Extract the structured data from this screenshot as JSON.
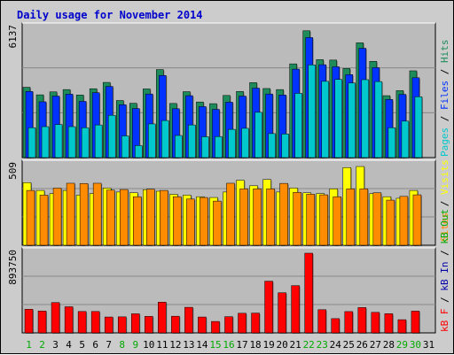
{
  "title": "Daily usage for November 2014",
  "colors": {
    "background": "#cccccc",
    "plot_background": "#bbbbbb",
    "title": "#0000cc",
    "hits": "#00c8cc",
    "files": "#0033ff",
    "pages": "#1e8c5a",
    "visits": "#ffff00",
    "sites": "#ff8c00",
    "kbin": "#0000aa",
    "kbout": "#00aa00",
    "kbf": "#ff0000",
    "weekend_day_label": "#00aa00",
    "weekday_day_label": "#000000"
  },
  "chart_data": [
    {
      "type": "bar",
      "id": "hits-files-pages",
      "categories": [
        "1",
        "2",
        "3",
        "4",
        "5",
        "6",
        "7",
        "8",
        "9",
        "10",
        "11",
        "12",
        "13",
        "14",
        "15",
        "16",
        "17",
        "18",
        "19",
        "20",
        "21",
        "22",
        "23",
        "24",
        "25",
        "26",
        "27",
        "28",
        "29",
        "30",
        "31"
      ],
      "weekend_days": [
        "1",
        "2",
        "8",
        "9",
        "15",
        "16",
        "22",
        "23",
        "29",
        "30"
      ],
      "y_max_label": "6137",
      "y_max": 6137,
      "series": [
        {
          "name": "Pages",
          "color_key": "pages",
          "values": [
            3340,
            2980,
            3120,
            3230,
            2970,
            3270,
            3570,
            2710,
            2580,
            3260,
            4180,
            2570,
            3130,
            2640,
            2560,
            2950,
            3140,
            3560,
            3280,
            3230,
            4450,
            6020,
            4650,
            4630,
            4230,
            5450,
            4570,
            2940,
            3180,
            4120,
            0
          ]
        },
        {
          "name": "Files",
          "color_key": "files",
          "values": [
            3140,
            2650,
            2920,
            3010,
            2670,
            3080,
            3380,
            2510,
            2330,
            3020,
            3900,
            2320,
            2940,
            2420,
            2290,
            2630,
            2920,
            3300,
            3020,
            2970,
            4200,
            5700,
            4410,
            4310,
            3940,
            5190,
            4270,
            2760,
            3000,
            3790,
            0
          ]
        },
        {
          "name": "Hits",
          "color_key": "hits",
          "values": [
            1420,
            1470,
            1570,
            1470,
            1420,
            1550,
            2010,
            1030,
            570,
            1600,
            1760,
            1050,
            1550,
            990,
            1000,
            1340,
            1390,
            2150,
            1140,
            1120,
            3050,
            4400,
            3620,
            3710,
            3540,
            3700,
            3610,
            1420,
            1730,
            2890,
            0
          ]
        }
      ]
    },
    {
      "type": "bar",
      "id": "visits-sites",
      "categories": [
        "1",
        "2",
        "3",
        "4",
        "5",
        "6",
        "7",
        "8",
        "9",
        "10",
        "11",
        "12",
        "13",
        "14",
        "15",
        "16",
        "17",
        "18",
        "19",
        "20",
        "21",
        "22",
        "23",
        "24",
        "25",
        "26",
        "27",
        "28",
        "29",
        "30",
        "31"
      ],
      "y_max_label": "509",
      "y_max": 509,
      "series": [
        {
          "name": "Visits",
          "color_key": "visits",
          "values": [
            400,
            350,
            330,
            350,
            320,
            330,
            365,
            340,
            335,
            355,
            345,
            325,
            320,
            310,
            305,
            340,
            415,
            380,
            420,
            340,
            365,
            335,
            330,
            360,
            496,
            503,
            330,
            310,
            300,
            350,
            0
          ]
        },
        {
          "name": "Sites",
          "color_key": "sites",
          "values": [
            350,
            320,
            365,
            396,
            394,
            396,
            352,
            356,
            310,
            358,
            350,
            310,
            295,
            305,
            282,
            396,
            360,
            360,
            360,
            395,
            338,
            326,
            322,
            310,
            360,
            360,
            335,
            288,
            312,
            322,
            0
          ]
        }
      ]
    },
    {
      "type": "bar",
      "id": "kbytes",
      "categories": [
        "1",
        "2",
        "3",
        "4",
        "5",
        "6",
        "7",
        "8",
        "9",
        "10",
        "11",
        "12",
        "13",
        "14",
        "15",
        "16",
        "17",
        "18",
        "19",
        "20",
        "21",
        "22",
        "23",
        "24",
        "25",
        "26",
        "27",
        "28",
        "29",
        "30",
        "31"
      ],
      "y_max_label": "893750",
      "y_max": 893750,
      "series": [
        {
          "name": "kB F",
          "color_key": "kbf",
          "values": [
            265000,
            245000,
            340000,
            293000,
            240000,
            240000,
            178000,
            180000,
            214000,
            185000,
            345000,
            187000,
            287000,
            178000,
            128000,
            182000,
            220000,
            222000,
            580000,
            450000,
            530000,
            893750,
            260000,
            160000,
            239000,
            284000,
            230000,
            215000,
            148000,
            244000,
            0
          ]
        }
      ]
    }
  ],
  "legends": {
    "top": [
      {
        "text": "Pages",
        "color_key": "hits"
      },
      {
        "text": " / ",
        "color_key": "weekday_day_label"
      },
      {
        "text": "Files",
        "color_key": "files"
      },
      {
        "text": " / ",
        "color_key": "weekday_day_label"
      },
      {
        "text": "Hits",
        "color_key": "pages"
      }
    ],
    "middle": [
      {
        "text": "Sites",
        "color_key": "sites"
      },
      {
        "text": " / ",
        "color_key": "weekday_day_label"
      },
      {
        "text": "Visits",
        "color_key": "visits"
      }
    ],
    "bottom": [
      {
        "text": "kB F",
        "color_key": "kbf"
      },
      {
        "text": " / ",
        "color_key": "weekday_day_label"
      },
      {
        "text": "kB In",
        "color_key": "kbin"
      },
      {
        "text": " / ",
        "color_key": "weekday_day_label"
      },
      {
        "text": "kB Out",
        "color_key": "kbout"
      }
    ]
  }
}
